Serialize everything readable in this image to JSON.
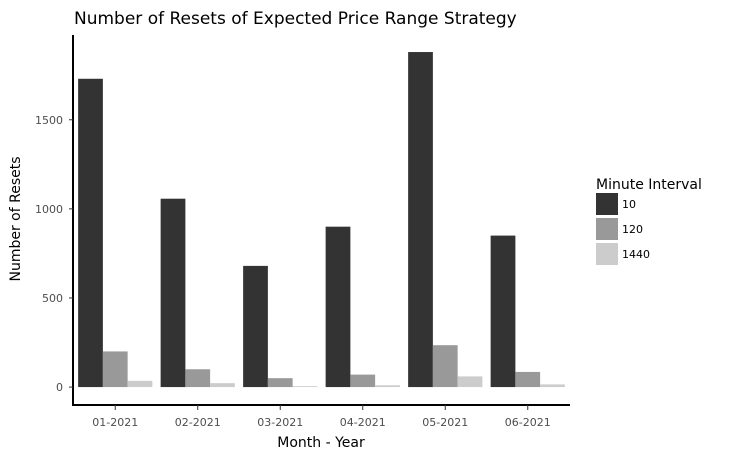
{
  "chart_data": {
    "type": "bar",
    "title": "Number of Resets of Expected Price Range Strategy",
    "xlabel": "Month - Year",
    "ylabel": "Number of Resets",
    "categories": [
      "01-2021",
      "02-2021",
      "03-2021",
      "04-2021",
      "05-2021",
      "06-2021"
    ],
    "series": [
      {
        "name": "10",
        "color": "#333333",
        "values": [
          1730,
          1057,
          680,
          900,
          1880,
          850
        ]
      },
      {
        "name": "120",
        "color": "#999999",
        "values": [
          200,
          100,
          50,
          70,
          235,
          85
        ]
      },
      {
        "name": "1440",
        "color": "#cccccc",
        "values": [
          35,
          22,
          5,
          10,
          60,
          15
        ]
      }
    ],
    "ylim": [
      -95,
      1970
    ],
    "yticks": [
      0,
      500,
      1000,
      1500
    ],
    "grid": false,
    "legend": {
      "title": "Minute Interval",
      "position": "right"
    }
  }
}
